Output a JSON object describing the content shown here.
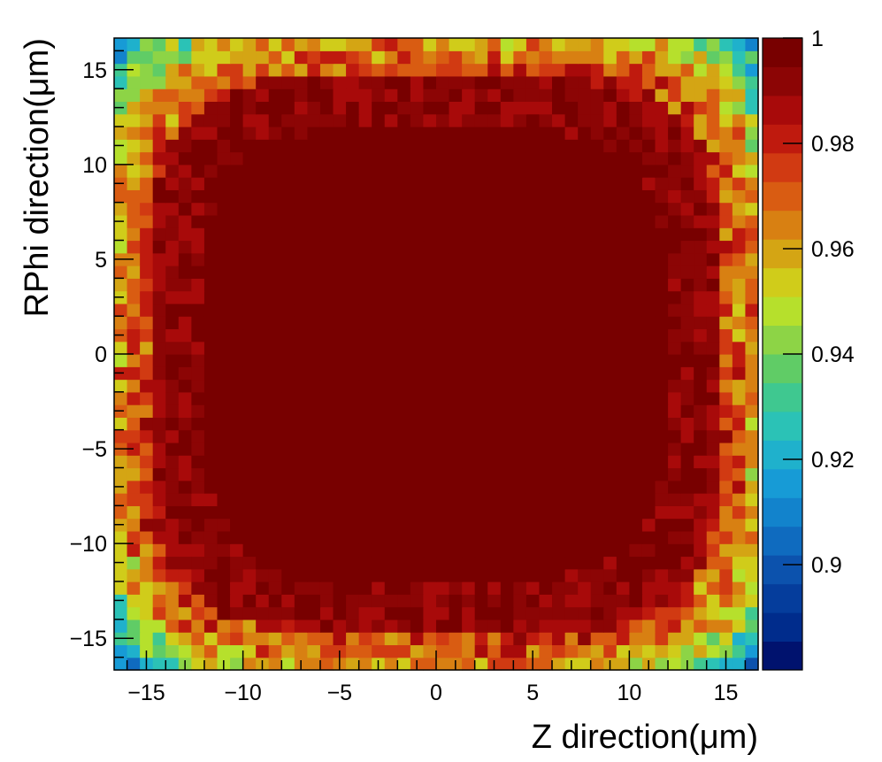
{
  "chart_data": {
    "type": "heatmap",
    "title": "",
    "xlabel": "Z direction(μm)",
    "ylabel": "RPhi direction(μm)",
    "xlim": [
      -16.67,
      16.67
    ],
    "ylim": [
      -16.67,
      16.67
    ],
    "x_ticks": [
      {
        "value": -15,
        "label": "−15"
      },
      {
        "value": -10,
        "label": "−10"
      },
      {
        "value": -5,
        "label": "−5"
      },
      {
        "value": 0,
        "label": "0"
      },
      {
        "value": 5,
        "label": "5"
      },
      {
        "value": 10,
        "label": "10"
      },
      {
        "value": 15,
        "label": "15"
      }
    ],
    "y_ticks": [
      {
        "value": -15,
        "label": "−15"
      },
      {
        "value": -10,
        "label": "−10"
      },
      {
        "value": -5,
        "label": "−5"
      },
      {
        "value": 0,
        "label": "0"
      },
      {
        "value": 5,
        "label": "5"
      },
      {
        "value": 10,
        "label": "10"
      },
      {
        "value": 15,
        "label": "15"
      }
    ],
    "grid": {
      "nx": 50,
      "ny": 50,
      "x_bin_width": 0.6667,
      "y_bin_width": 0.6667,
      "pattern": "efficiency ~1 in center, falling toward corners (min ~0.885 at corners)"
    },
    "zlim": [
      0.88,
      1.0
    ],
    "colorbar": {
      "ticks": [
        {
          "value": 1.0,
          "label": "1"
        },
        {
          "value": 0.98,
          "label": "0.98"
        },
        {
          "value": 0.96,
          "label": "0.96"
        },
        {
          "value": 0.94,
          "label": "0.94"
        },
        {
          "value": 0.92,
          "label": "0.92"
        },
        {
          "value": 0.9,
          "label": "0.9"
        }
      ],
      "colors": [
        "#00126e",
        "#002c8c",
        "#053d9c",
        "#0c52ad",
        "#0f6bbf",
        "#1283cc",
        "#179bd6",
        "#1fb1cc",
        "#2bc2b6",
        "#3fc890",
        "#60cc66",
        "#8dd446",
        "#b6e02c",
        "#d0cc1a",
        "#d4a514",
        "#d88012",
        "#d95c12",
        "#d13a12",
        "#bf1a0e",
        "#a80a0a",
        "#8c0505",
        "#780000"
      ],
      "placement": "right"
    }
  }
}
